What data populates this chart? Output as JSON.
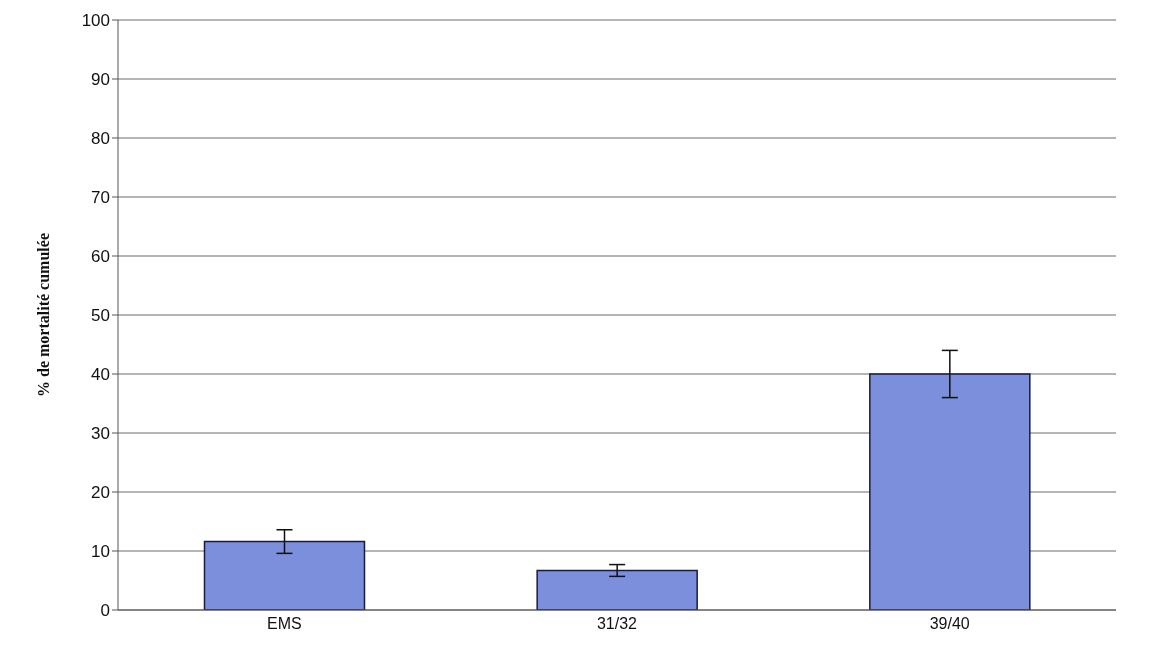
{
  "chart_data": {
    "type": "bar",
    "ylabel": "% de mortalité cumulée",
    "categories": [
      "EMS",
      "31/32",
      "39/40"
    ],
    "values": [
      11.6,
      6.7,
      40
    ],
    "errors": [
      2,
      1,
      4
    ],
    "color": "#7b8fdc",
    "ylim": [
      0,
      100
    ],
    "yticks": [
      0,
      10,
      20,
      30,
      40,
      50,
      60,
      70,
      80,
      90,
      100
    ],
    "grid": "y"
  }
}
